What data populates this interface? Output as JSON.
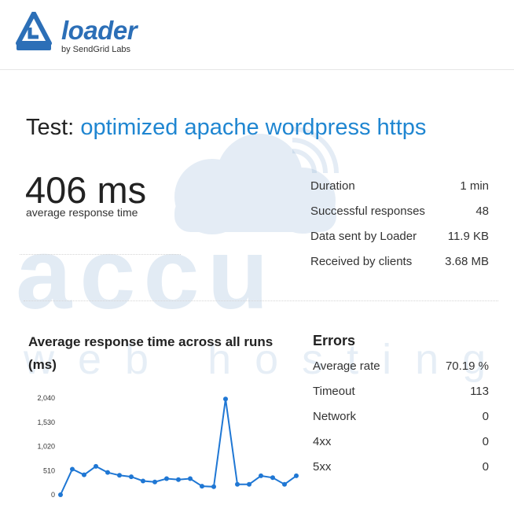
{
  "brand": {
    "name": "loader",
    "tagline": "by SendGrid Labs",
    "color": "#2c6fb7"
  },
  "test": {
    "label": "Test:",
    "name": "optimized apache wordpress https"
  },
  "summary": {
    "value": "406 ms",
    "caption": "average response time"
  },
  "stats": [
    {
      "label": "Duration",
      "value": "1 min"
    },
    {
      "label": "Successful responses",
      "value": "48"
    },
    {
      "label": "Data sent by Loader",
      "value": "11.9 KB"
    },
    {
      "label": "Received by clients",
      "value": "3.68 MB"
    }
  ],
  "errors": {
    "title": "Errors",
    "rows": [
      {
        "label": "Average rate",
        "value": "70.19 %"
      },
      {
        "label": "Timeout",
        "value": "113"
      },
      {
        "label": "Network",
        "value": "0"
      },
      {
        "label": "4xx",
        "value": "0"
      },
      {
        "label": "5xx",
        "value": "0"
      }
    ]
  },
  "watermark": {
    "line1": "accu",
    "line2": "web hosting"
  },
  "chart_data": {
    "type": "line",
    "title": "Average response time across all runs (ms)",
    "ylim": [
      0,
      2040
    ],
    "yticks": [
      "0",
      "510",
      "1,020",
      "1,530",
      "2,040"
    ],
    "ytick_values": [
      0,
      510,
      1020,
      1530,
      2040
    ],
    "grid": false,
    "series": [
      {
        "color": "#1f77d4",
        "values": [
          0,
          540,
          420,
          600,
          470,
          410,
          380,
          290,
          270,
          340,
          320,
          340,
          180,
          170,
          2020,
          220,
          220,
          400,
          360,
          220,
          400
        ]
      }
    ]
  }
}
